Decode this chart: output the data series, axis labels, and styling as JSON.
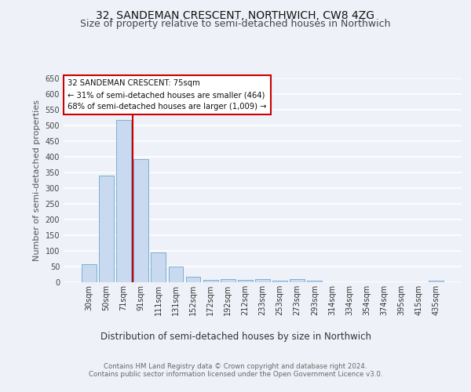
{
  "title1": "32, SANDEMAN CRESCENT, NORTHWICH, CW8 4ZG",
  "title2": "Size of property relative to semi-detached houses in Northwich",
  "xlabel": "Distribution of semi-detached houses by size in Northwich",
  "ylabel": "Number of semi-detached properties",
  "categories": [
    "30sqm",
    "50sqm",
    "71sqm",
    "91sqm",
    "111sqm",
    "131sqm",
    "152sqm",
    "172sqm",
    "192sqm",
    "212sqm",
    "233sqm",
    "253sqm",
    "273sqm",
    "293sqm",
    "314sqm",
    "334sqm",
    "354sqm",
    "374sqm",
    "395sqm",
    "415sqm",
    "435sqm"
  ],
  "values": [
    57,
    340,
    517,
    392,
    95,
    50,
    18,
    8,
    10,
    8,
    10,
    5,
    10,
    6,
    0,
    0,
    0,
    0,
    0,
    0,
    6
  ],
  "bar_color": "#c9d9f0",
  "bar_edge_color": "#7bafd4",
  "vline_index": 2,
  "vline_color": "#cc0000",
  "annotation_text": "32 SANDEMAN CRESCENT: 75sqm\n← 31% of semi-detached houses are smaller (464)\n68% of semi-detached houses are larger (1,009) →",
  "annotation_box_color": "#ffffff",
  "annotation_border_color": "#cc0000",
  "ylim": [
    0,
    650
  ],
  "yticks": [
    0,
    50,
    100,
    150,
    200,
    250,
    300,
    350,
    400,
    450,
    500,
    550,
    600,
    650
  ],
  "footnote1": "Contains HM Land Registry data © Crown copyright and database right 2024.",
  "footnote2": "Contains public sector information licensed under the Open Government Licence v3.0.",
  "bg_color": "#eef2f8",
  "grid_color": "#ffffff",
  "title1_fontsize": 10,
  "title2_fontsize": 9,
  "axis_label_fontsize": 8,
  "tick_fontsize": 7
}
